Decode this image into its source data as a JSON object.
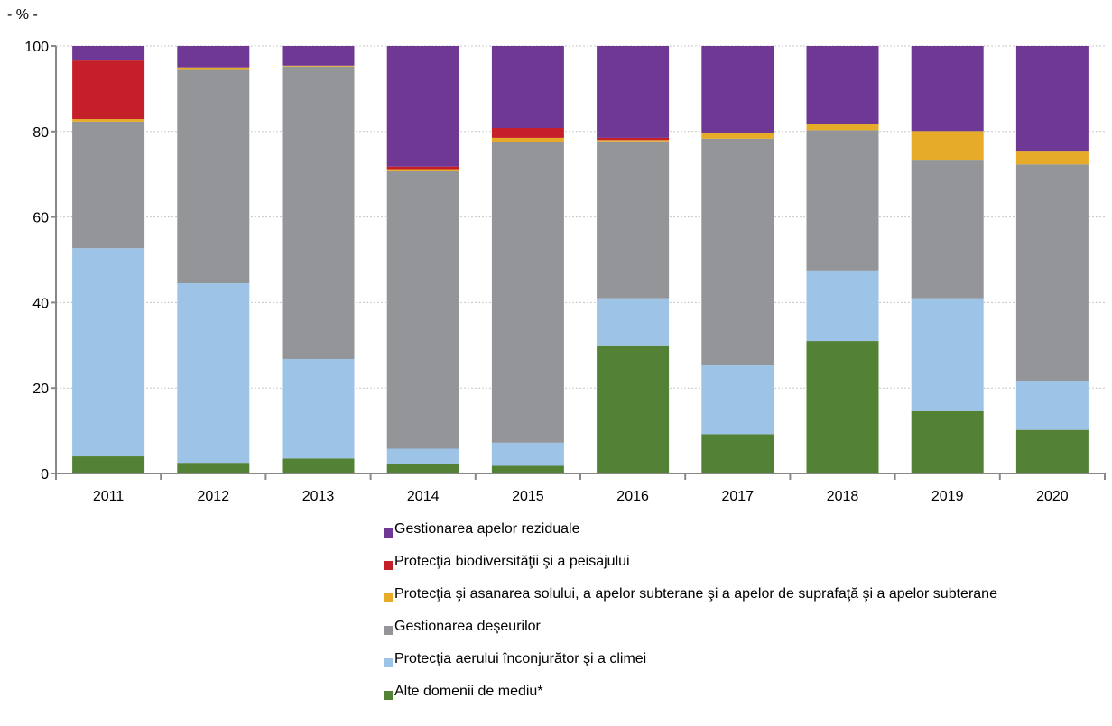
{
  "chart_data": {
    "type": "bar",
    "stacked": true,
    "unit_label": "- % -",
    "categories": [
      "2011",
      "2012",
      "2013",
      "2014",
      "2015",
      "2016",
      "2017",
      "2018",
      "2019",
      "2020"
    ],
    "ylim": [
      0,
      100
    ],
    "yticks": [
      0,
      20,
      40,
      60,
      80,
      100
    ],
    "grid": true,
    "legend_position": "bottom",
    "series": [
      {
        "name": "Alte domenii de mediu*",
        "color": "#538135",
        "values": [
          4.0,
          2.5,
          3.5,
          2.3,
          1.8,
          29.8,
          9.2,
          31.0,
          14.6,
          10.2
        ]
      },
      {
        "name": "Protecţia aerului înconjurător şi a climei",
        "color": "#9dc3e6",
        "values": [
          48.7,
          42.0,
          23.3,
          3.5,
          5.4,
          11.2,
          16.1,
          16.5,
          26.4,
          11.3
        ]
      },
      {
        "name": "Gestionarea  deşeurilor",
        "color": "#939598",
        "values": [
          29.6,
          49.9,
          68.4,
          64.9,
          70.4,
          36.7,
          53.0,
          32.8,
          32.4,
          50.8
        ]
      },
      {
        "name": "Protecţia şi asanarea solului, a apelor subterane şi a apelor de suprafaţă şi a apelor subterane",
        "color": "#e6ac29",
        "values": [
          0.6,
          0.6,
          0.2,
          0.5,
          0.9,
          0.3,
          1.4,
          1.4,
          6.7,
          3.2
        ]
      },
      {
        "name": "Protecţia  biodiversităţii şi a peisajului",
        "color": "#c5202a",
        "values": [
          13.7,
          0.0,
          0.0,
          0.6,
          2.3,
          0.5,
          0.0,
          0.0,
          0.0,
          0.0
        ]
      },
      {
        "name": "Gestionarea apelor reziduale",
        "color": "#6f3895",
        "values": [
          3.4,
          5.0,
          4.6,
          28.2,
          19.2,
          21.5,
          20.3,
          18.3,
          19.9,
          24.5
        ]
      }
    ]
  },
  "legend": [
    {
      "label": "Gestionarea apelor reziduale",
      "color": "#6f3895"
    },
    {
      "label": "Protecţia  biodiversităţii şi a peisajului",
      "color": "#c5202a"
    },
    {
      "label": "Protecţia şi asanarea solului, a apelor subterane şi a apelor de suprafaţă şi a apelor subterane",
      "color": "#e6ac29"
    },
    {
      "label": "Gestionarea  deşeurilor",
      "color": "#939598"
    },
    {
      "label": "Protecţia aerului înconjurător şi a climei",
      "color": "#9dc3e6"
    },
    {
      "label": " Alte domenii de mediu*",
      "color": "#538135"
    }
  ]
}
